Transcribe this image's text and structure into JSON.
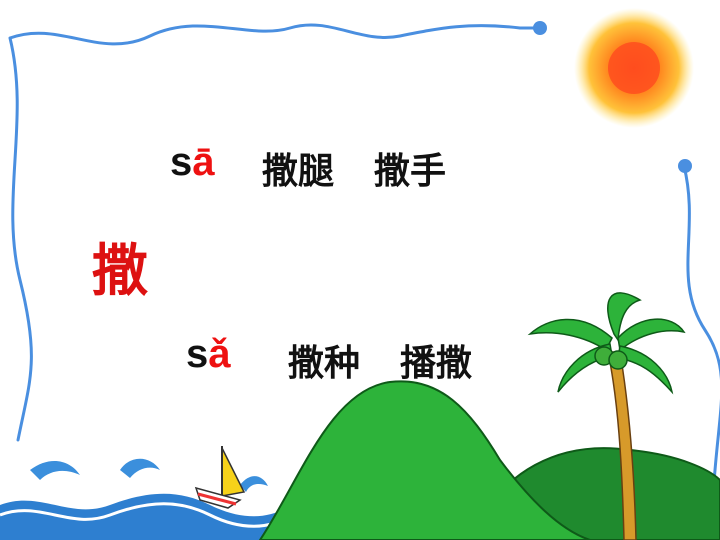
{
  "reading1": {
    "initial": "s",
    "final": "ā"
  },
  "reading1_words": [
    "撒腿",
    "撒手"
  ],
  "character": "撒",
  "reading2": {
    "initial": "s",
    "final": "ǎ"
  },
  "reading2_words": [
    "撒种",
    "播撒"
  ],
  "colors": {
    "highlight": "#ee1111",
    "border": "#4a8fe0",
    "sun": "#ff6a1a",
    "hill": "#2db33a",
    "water": "#2e7fd0"
  },
  "icons": [
    "sun-icon",
    "palm-tree-icon",
    "sailboat-icon",
    "wave-icon"
  ]
}
